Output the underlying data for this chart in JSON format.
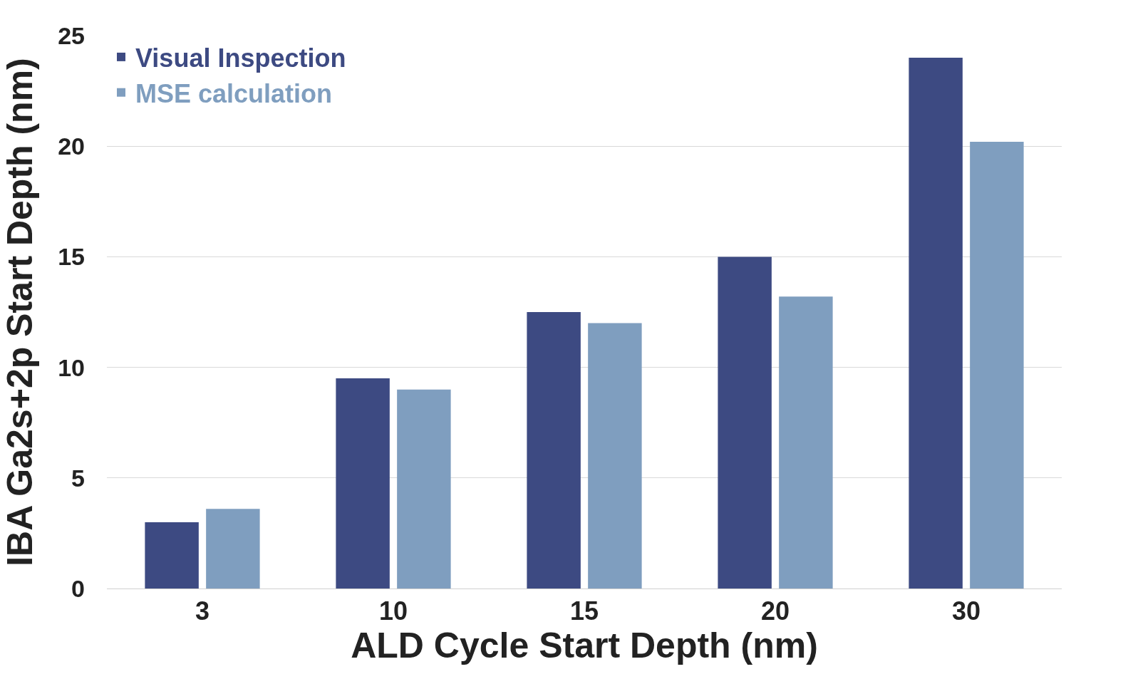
{
  "chart_data": {
    "type": "bar",
    "xlabel": "ALD Cycle Start Depth (nm)",
    "ylabel": "IBA Ga2s+2p Start Depth (nm)",
    "categories": [
      "3",
      "10",
      "15",
      "20",
      "30"
    ],
    "series": [
      {
        "name": "Visual Inspection",
        "color": "#3d4a82",
        "values": [
          3.0,
          9.5,
          12.5,
          15.0,
          24.0
        ]
      },
      {
        "name": "MSE calculation",
        "color": "#7f9ebf",
        "values": [
          3.6,
          9.0,
          12.0,
          13.2,
          20.2
        ]
      }
    ],
    "ylim": [
      0,
      25
    ],
    "yticks": [
      0,
      5,
      10,
      15,
      20,
      25
    ],
    "grid": "y",
    "legend": "top left"
  }
}
